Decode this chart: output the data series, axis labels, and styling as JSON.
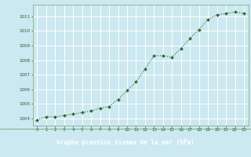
{
  "x": [
    0,
    1,
    2,
    3,
    4,
    5,
    6,
    7,
    8,
    9,
    10,
    11,
    12,
    13,
    14,
    15,
    16,
    17,
    18,
    19,
    20,
    21,
    22,
    23
  ],
  "y": [
    1003.9,
    1004.1,
    1004.1,
    1004.2,
    1004.3,
    1004.4,
    1004.5,
    1004.7,
    1004.8,
    1005.3,
    1005.9,
    1006.5,
    1007.4,
    1008.3,
    1008.3,
    1008.2,
    1008.8,
    1009.5,
    1010.1,
    1010.8,
    1011.1,
    1011.2,
    1011.3,
    1011.2
  ],
  "ylim": [
    1003.5,
    1011.8
  ],
  "yticks": [
    1004,
    1005,
    1006,
    1007,
    1008,
    1009,
    1010,
    1011
  ],
  "xlim": [
    -0.5,
    23.5
  ],
  "xticks": [
    0,
    1,
    2,
    3,
    4,
    5,
    6,
    7,
    8,
    9,
    10,
    11,
    12,
    13,
    14,
    15,
    16,
    17,
    18,
    19,
    20,
    21,
    22,
    23
  ],
  "line_color": "#2d6a2d",
  "marker_color": "#2d6a2d",
  "bg_color": "#cce8f0",
  "grid_color": "#ffffff",
  "xlabel": "Graphe pression niveau de la mer (hPa)",
  "tick_color": "#2d5a2d",
  "spine_color": "#7aaa7a",
  "bottom_bar_color": "#4a8a4a",
  "bottom_bar_text_color": "#ffffff"
}
